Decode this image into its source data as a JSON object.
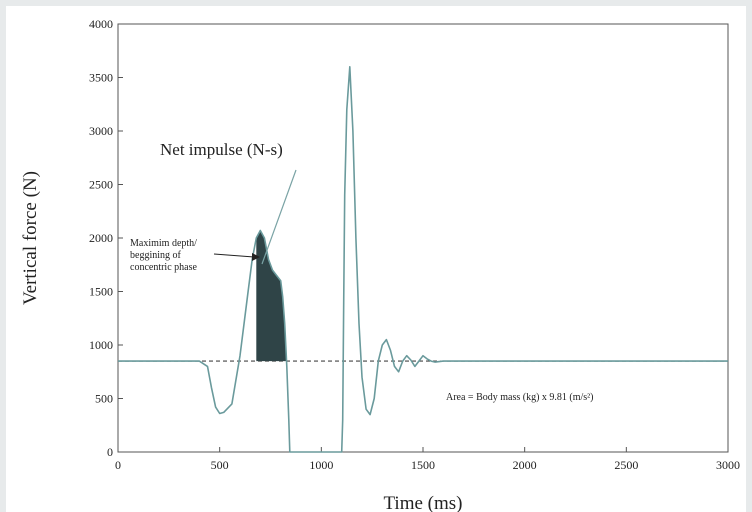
{
  "chart_data": {
    "type": "line",
    "title": "",
    "xlabel": "Time (ms)",
    "ylabel": "Vertical force (N)",
    "xlim": [
      0,
      3000
    ],
    "ylim": [
      0,
      4000
    ],
    "xticks": [
      0,
      500,
      1000,
      1500,
      2000,
      2500,
      3000
    ],
    "yticks": [
      0,
      500,
      1000,
      1500,
      2000,
      2500,
      3000,
      3500,
      4000
    ],
    "grid": false,
    "legend": "none",
    "series": [
      {
        "x": [
          0,
          400,
          440,
          460,
          480,
          500,
          520,
          560,
          600,
          640,
          660,
          680,
          700,
          720,
          740,
          760,
          780,
          800,
          810,
          820,
          830,
          840,
          845,
          850,
          1100,
          1105,
          1110,
          1115,
          1125,
          1140,
          1155,
          1170,
          1185,
          1200,
          1220,
          1240,
          1260,
          1280,
          1300,
          1320,
          1340,
          1360,
          1380,
          1400,
          1420,
          1440,
          1460,
          1480,
          1500,
          1520,
          1540,
          1560,
          1600,
          3000
        ],
        "y": [
          850,
          850,
          800,
          600,
          420,
          360,
          370,
          450,
          900,
          1500,
          1800,
          2000,
          2070,
          2000,
          1800,
          1700,
          1650,
          1600,
          1450,
          1200,
          800,
          300,
          0,
          0,
          0,
          300,
          1400,
          2400,
          3200,
          3600,
          3000,
          2000,
          1200,
          700,
          400,
          350,
          500,
          850,
          1000,
          1050,
          950,
          800,
          750,
          850,
          900,
          860,
          800,
          850,
          900,
          870,
          850,
          840,
          850,
          850
        ],
        "color": "#6a9a9c"
      }
    ],
    "shaded_regions": [
      {
        "x_start": 680,
        "x_end": 830,
        "y_floor": 850,
        "color": "#2f4447",
        "x": [
          680,
          700,
          720,
          740,
          760,
          780,
          800,
          810,
          820,
          830
        ],
        "y": [
          2000,
          2070,
          2000,
          1800,
          1700,
          1650,
          1600,
          1450,
          1200,
          850
        ]
      }
    ],
    "reference_lines": [
      {
        "orientation": "horizontal",
        "y": 850,
        "style": "dashed",
        "color": "#444444"
      }
    ],
    "annotations": {
      "net_impulse": "Net impulse (N-s)",
      "max_depth_lines": [
        "Maximim depth/",
        "beggining of",
        "concentric phase"
      ],
      "area": "Area = Body mass (kg) x 9.81 (m/s²)"
    }
  }
}
